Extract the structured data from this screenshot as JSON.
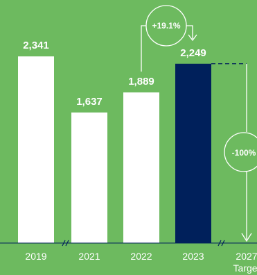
{
  "chart_data": {
    "type": "bar",
    "categories": [
      "2019",
      "2021",
      "2022",
      "2023",
      "2027"
    ],
    "category_sublabels": [
      "",
      "",
      "",
      "",
      "Target"
    ],
    "values": [
      2341,
      1637,
      1889,
      2249,
      0
    ],
    "value_labels": [
      "2,341",
      "1,637",
      "1,889",
      "2,249",
      ""
    ],
    "highlight_index": 3,
    "axis_breaks_after": [
      "2021",
      "2023"
    ],
    "annotations": [
      {
        "text": "+19.1%",
        "from": "2022",
        "to": "2023"
      },
      {
        "text": "-100%",
        "from": "2023",
        "to": "2027"
      }
    ],
    "ylim": [
      0,
      2700
    ],
    "grid": false,
    "title": "",
    "xlabel": "",
    "ylabel": ""
  },
  "colors": {
    "background": "#6dba5f",
    "bar": "#ffffff",
    "highlight_bar": "#00205b",
    "text": "#ffffff",
    "axis": "#00205b"
  }
}
